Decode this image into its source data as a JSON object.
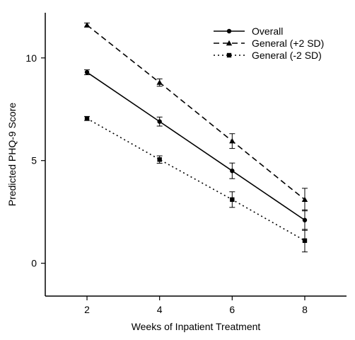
{
  "chart_data": {
    "type": "line",
    "xlabel": "Weeks of Inpatient Treatment",
    "ylabel": "Predicted PHQ-9 Score",
    "x": [
      2,
      4,
      6,
      8
    ],
    "xlim": [
      0.85,
      9.15
    ],
    "ylim": [
      -1.6,
      12.2
    ],
    "xticks": [
      "2",
      "4",
      "6",
      "8"
    ],
    "yticks": [
      "0",
      "5",
      "10"
    ],
    "legend_position": "top-right",
    "series": [
      {
        "name": "Overall",
        "line_style": "solid",
        "marker": "circle",
        "values": [
          9.3,
          6.9,
          4.5,
          2.1
        ],
        "error": [
          0.12,
          0.22,
          0.38,
          0.5
        ]
      },
      {
        "name": "General (+2 SD)",
        "line_style": "dashed",
        "marker": "triangle",
        "values": [
          11.6,
          8.8,
          5.95,
          3.1
        ],
        "error": [
          0.1,
          0.18,
          0.36,
          0.55
        ]
      },
      {
        "name": "General (-2 SD)",
        "line_style": "dotted",
        "marker": "square",
        "values": [
          7.05,
          5.05,
          3.1,
          1.1
        ],
        "error": [
          0.1,
          0.18,
          0.38,
          0.55
        ]
      }
    ]
  }
}
